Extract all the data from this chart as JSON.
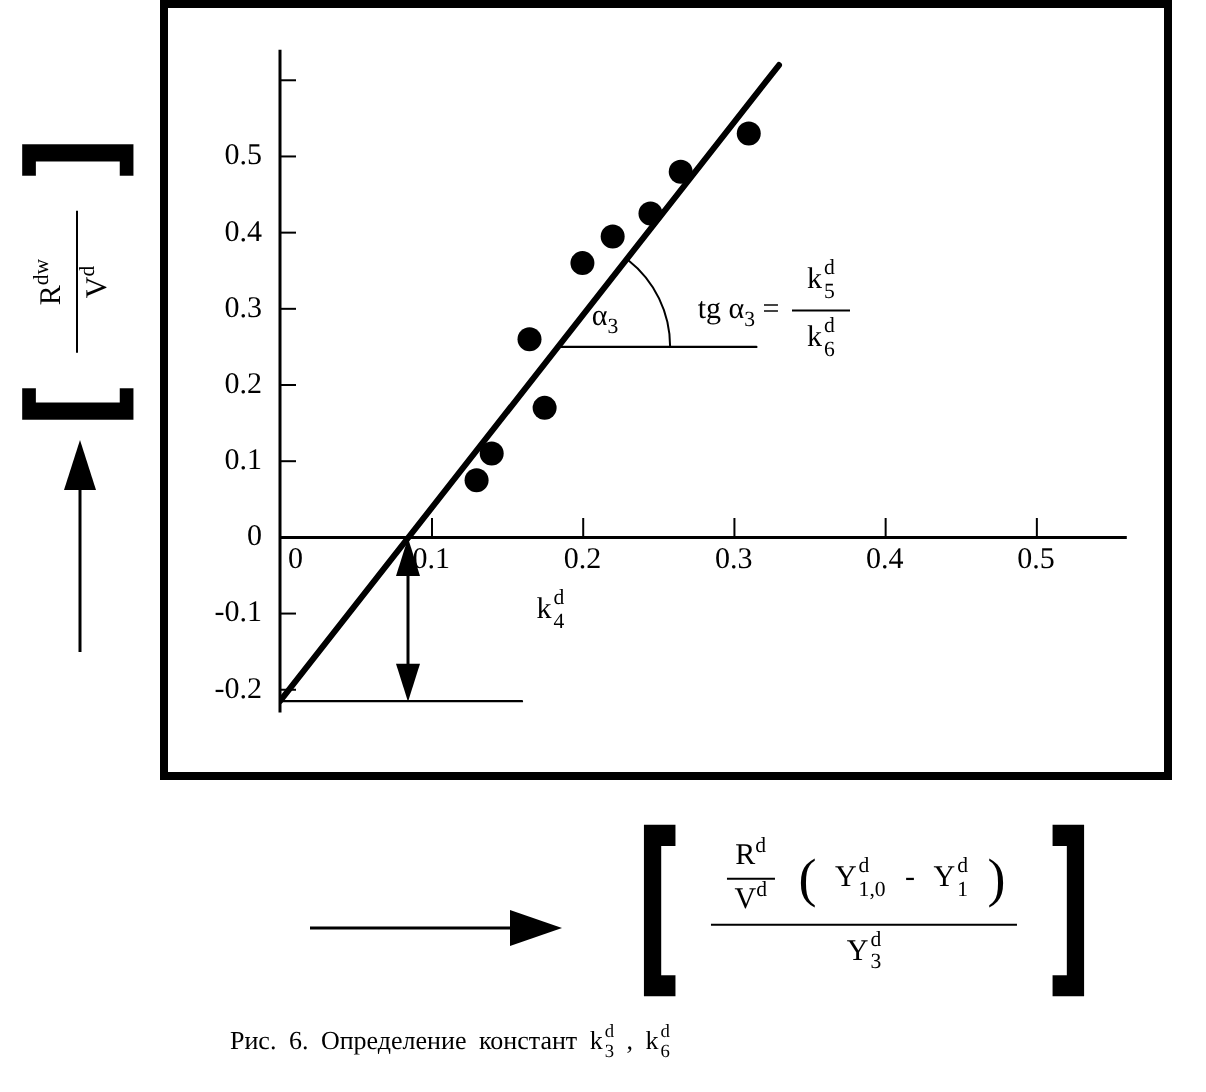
{
  "chart_data": {
    "type": "scatter",
    "xlabel": "[ R$^{d}$ V$^{d}$ ( Y$_{1,0}$$^{d}$ - Y$_{1}$$^{d}$ ) Y$_{3}$$^{d}$ ]",
    "ylabel": "[ R$^{dw}$ V$^{d}$ ]",
    "xlim": [
      0,
      0.56
    ],
    "ylim": [
      -0.23,
      0.64
    ],
    "xticks": [
      0,
      0.1,
      0.2,
      0.3,
      0.4,
      0.5
    ],
    "yticks": [
      -0.2,
      -0.1,
      0,
      0.1,
      0.2,
      0.3,
      0.4,
      0.5,
      {
        "value": 0.6,
        "label": null
      }
    ],
    "series": [
      {
        "color": "#000000",
        "marker": "circle",
        "x": [
          0.13,
          0.14,
          0.165,
          0.175,
          0.2,
          0.22,
          0.245,
          0.265,
          0.31
        ],
        "values": [
          0.075,
          0.11,
          0.26,
          0.17,
          0.36,
          0.395,
          0.425,
          0.48,
          0.53
        ]
      },
      {
        "type": "line",
        "color": "#000000",
        "x": [
          0,
          0.33
        ],
        "values": [
          -0.215,
          0.62
        ]
      },
      {
        "type": "line",
        "color": "#000000",
        "x": [
          0,
          0.16
        ],
        "values": [
          -0.215,
          -0.215
        ]
      },
      {
        "type": "line",
        "color": "#000000",
        "x": [
          0.185,
          0.315
        ],
        "values": [
          0.25,
          0.25
        ]
      }
    ],
    "annotations": [
      {
        "text": "α$_{3}$",
        "x": 0.185,
        "y": 0.25
      },
      "tg α$_{3}$ = k$_{5}$$^{d}$ k$_{6}$$^{d}$",
      "k$_{4}$$^{d}$",
      "Рис. 6. Определение констант k$_{3}$$^{d}$ , k$_{6}$$^{d}$"
    ]
  }
}
